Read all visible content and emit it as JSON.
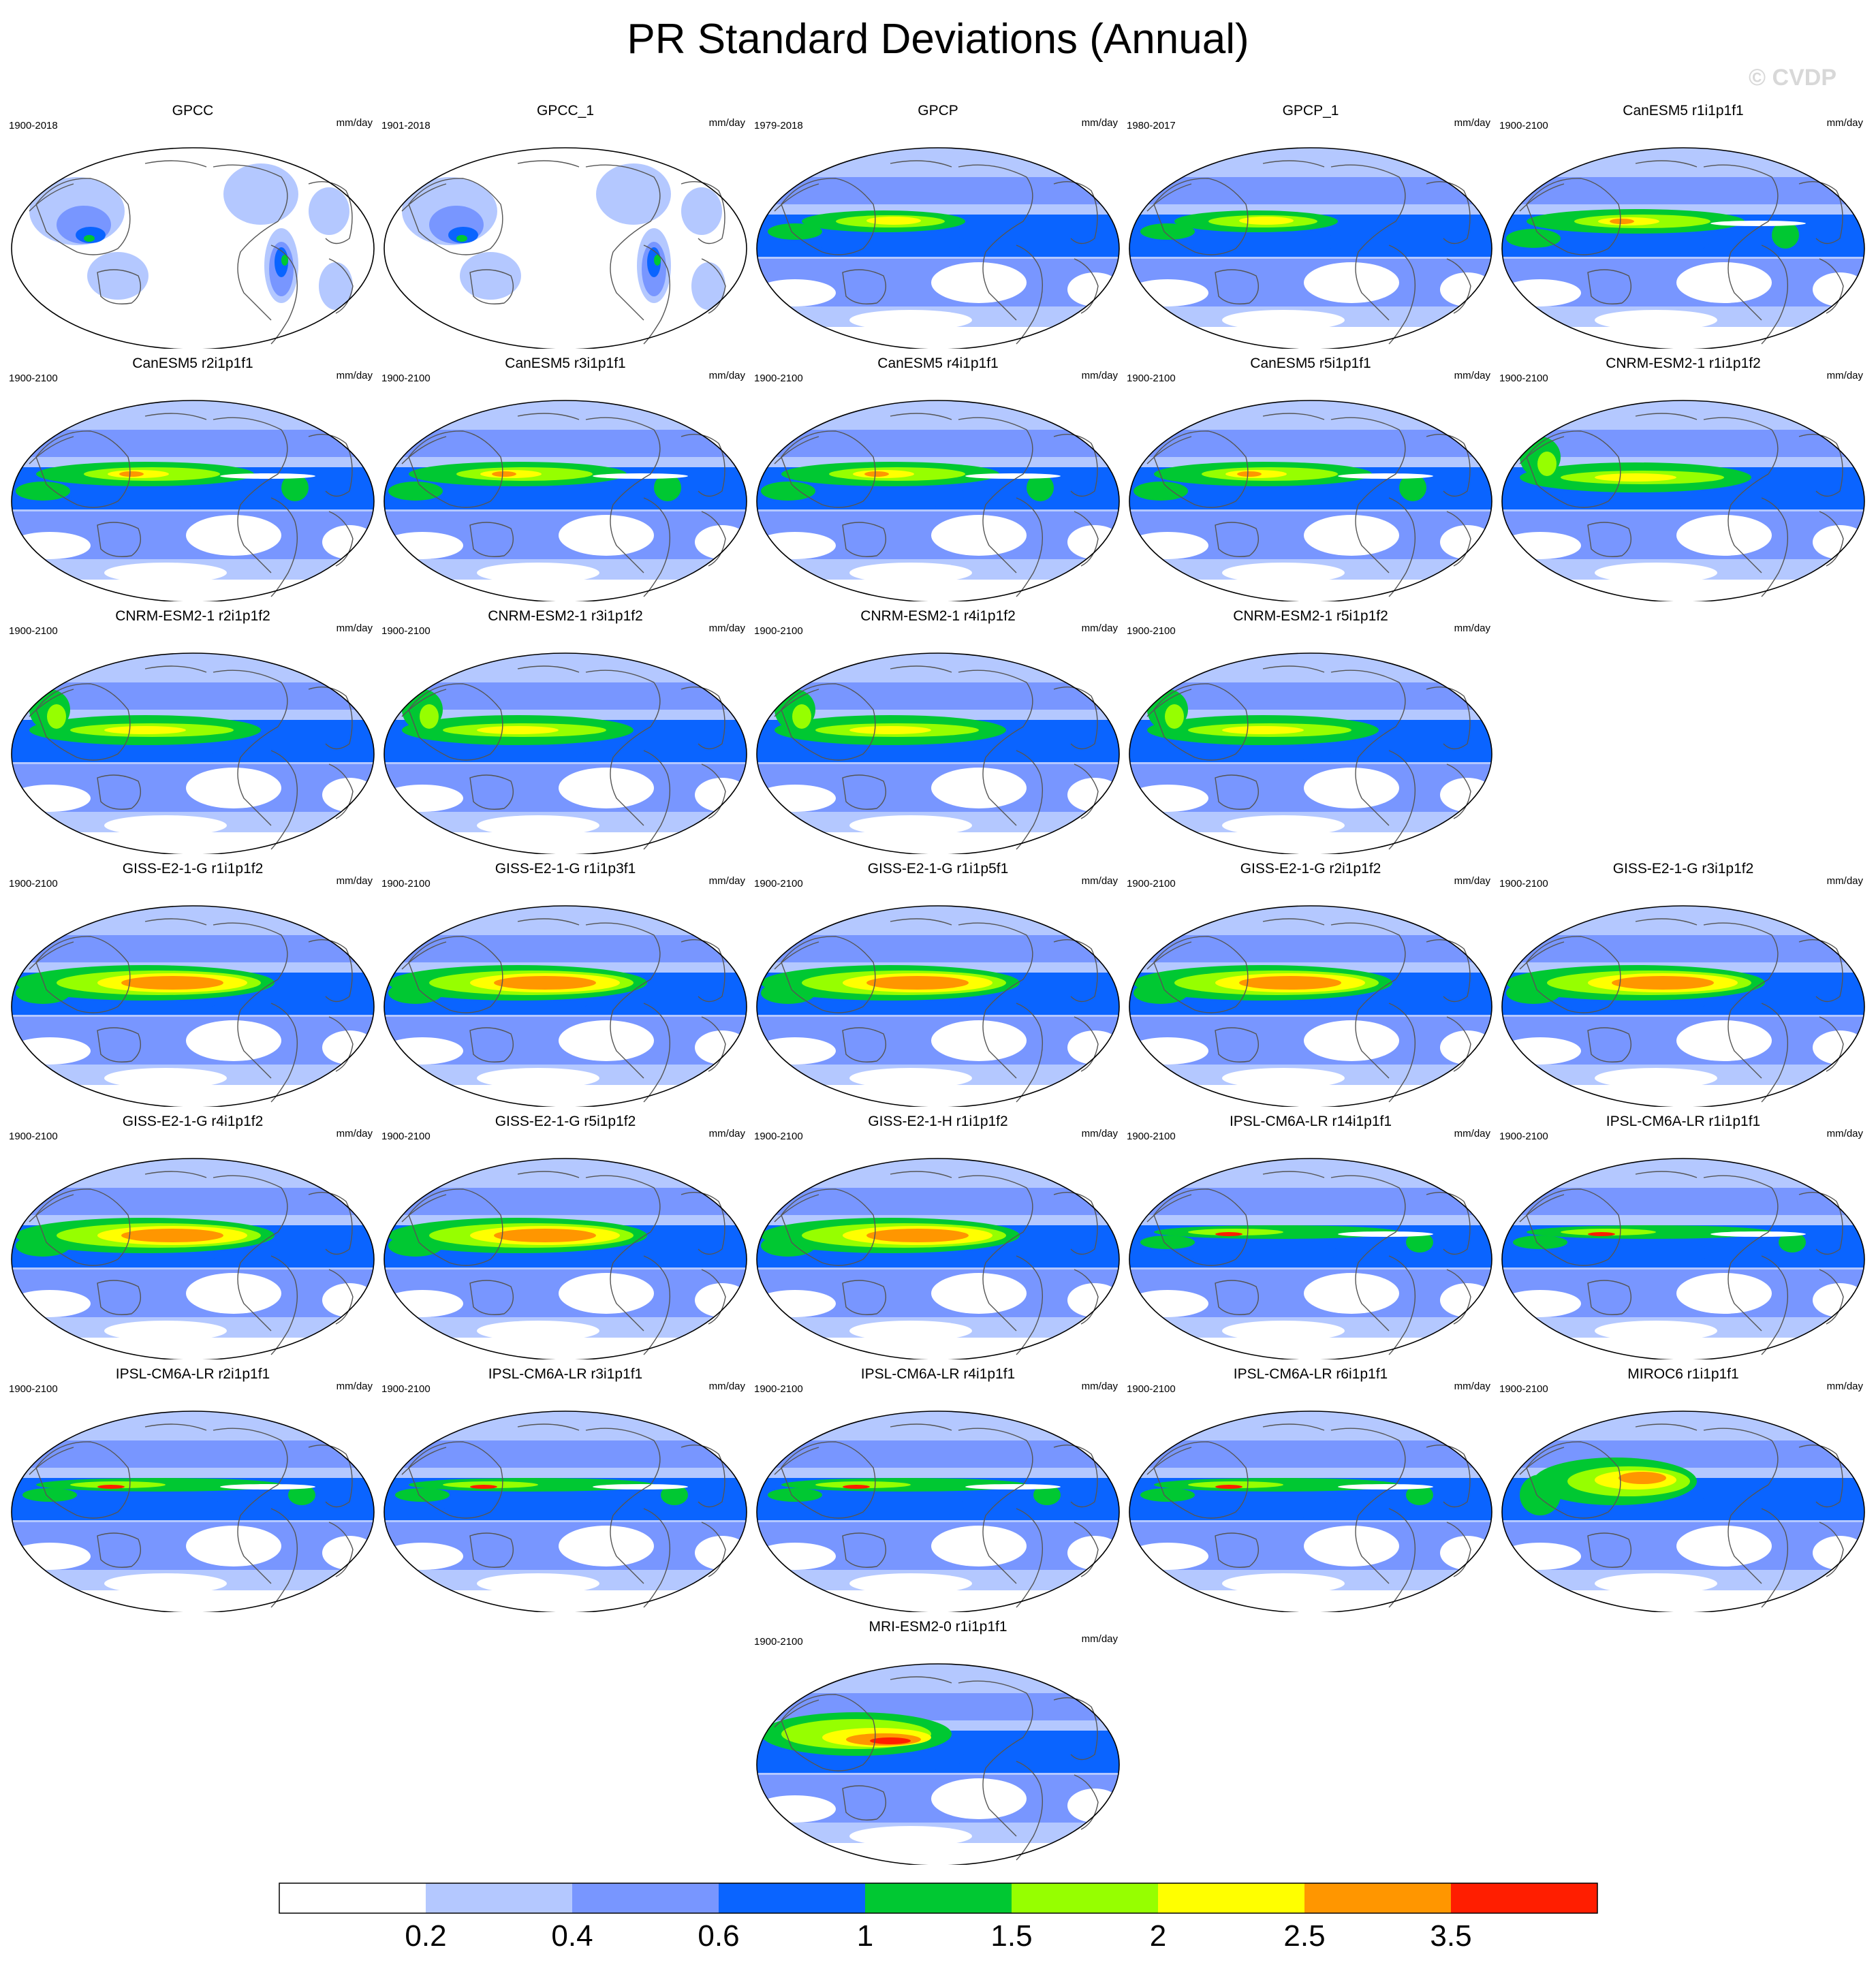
{
  "title": "PR Standard Deviations (Annual)",
  "watermark": "© CVDP",
  "units": "mm/day",
  "chart_data": {
    "type": "heatmap",
    "title": "PR Standard Deviations (Annual)",
    "units": "mm/day",
    "projection": "Robinson (Pacific-centered)",
    "colorbar": {
      "levels": [
        "0.2",
        "0.4",
        "0.6",
        "1",
        "1.5",
        "2",
        "2.5",
        "3.5"
      ],
      "colors": [
        "#ffffff",
        "#b4c8ff",
        "#7896ff",
        "#0a64ff",
        "#00c832",
        "#96ff00",
        "#ffff00",
        "#ff9600",
        "#ff1e00"
      ]
    },
    "panels": [
      {
        "name": "GPCC",
        "period": "1900-2018",
        "style": "land"
      },
      {
        "name": "GPCC_1",
        "period": "1901-2018",
        "style": "land"
      },
      {
        "name": "GPCP",
        "period": "1979-2018",
        "style": "obs"
      },
      {
        "name": "GPCP_1",
        "period": "1980-2017",
        "style": "obs"
      },
      {
        "name": "CanESM5 r1i1p1f1",
        "period": "1900-2100",
        "style": "can"
      },
      {
        "name": "CanESM5 r2i1p1f1",
        "period": "1900-2100",
        "style": "can"
      },
      {
        "name": "CanESM5 r3i1p1f1",
        "period": "1900-2100",
        "style": "can"
      },
      {
        "name": "CanESM5 r4i1p1f1",
        "period": "1900-2100",
        "style": "can"
      },
      {
        "name": "CanESM5 r5i1p1f1",
        "period": "1900-2100",
        "style": "can"
      },
      {
        "name": "CNRM-ESM2-1 r1i1p1f2",
        "period": "1900-2100",
        "style": "cnrm"
      },
      {
        "name": "CNRM-ESM2-1 r2i1p1f2",
        "period": "1900-2100",
        "style": "cnrm"
      },
      {
        "name": "CNRM-ESM2-1 r3i1p1f2",
        "period": "1900-2100",
        "style": "cnrm"
      },
      {
        "name": "CNRM-ESM2-1 r4i1p1f2",
        "period": "1900-2100",
        "style": "cnrm"
      },
      {
        "name": "CNRM-ESM2-1 r5i1p1f2",
        "period": "1900-2100",
        "style": "cnrm"
      },
      {
        "name": "GISS-E2-1-G r1i1p1f2",
        "period": "1900-2100",
        "style": "giss"
      },
      {
        "name": "GISS-E2-1-G r1i1p3f1",
        "period": "1900-2100",
        "style": "giss"
      },
      {
        "name": "GISS-E2-1-G r1i1p5f1",
        "period": "1900-2100",
        "style": "giss"
      },
      {
        "name": "GISS-E2-1-G r2i1p1f2",
        "period": "1900-2100",
        "style": "giss"
      },
      {
        "name": "GISS-E2-1-G r3i1p1f2",
        "period": "1900-2100",
        "style": "giss"
      },
      {
        "name": "GISS-E2-1-G r4i1p1f2",
        "period": "1900-2100",
        "style": "giss"
      },
      {
        "name": "GISS-E2-1-G r5i1p1f2",
        "period": "1900-2100",
        "style": "giss"
      },
      {
        "name": "GISS-E2-1-H r1i1p1f2",
        "period": "1900-2100",
        "style": "giss"
      },
      {
        "name": "IPSL-CM6A-LR r14i1p1f1",
        "period": "1900-2100",
        "style": "ipsl"
      },
      {
        "name": "IPSL-CM6A-LR r1i1p1f1",
        "period": "1900-2100",
        "style": "ipsl"
      },
      {
        "name": "IPSL-CM6A-LR r2i1p1f1",
        "period": "1900-2100",
        "style": "ipsl"
      },
      {
        "name": "IPSL-CM6A-LR r3i1p1f1",
        "period": "1900-2100",
        "style": "ipsl"
      },
      {
        "name": "IPSL-CM6A-LR r4i1p1f1",
        "period": "1900-2100",
        "style": "ipsl"
      },
      {
        "name": "IPSL-CM6A-LR r6i1p1f1",
        "period": "1900-2100",
        "style": "ipsl"
      },
      {
        "name": "MIROC6 r1i1p1f1",
        "period": "1900-2100",
        "style": "miroc"
      },
      {
        "name": "MRI-ESM2-0 r1i1p1f1",
        "period": "1900-2100",
        "style": "mri"
      }
    ]
  }
}
